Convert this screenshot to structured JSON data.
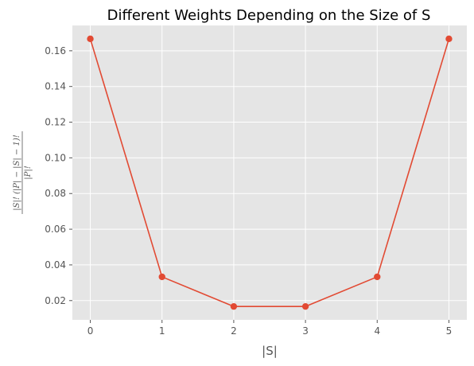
{
  "chart_data": {
    "type": "line",
    "title": "Different Weights Depending on the Size of S",
    "xlabel": "|S|",
    "ylabel_numerator": "|S|! (|P| − |S| − 1)!",
    "ylabel_denominator": "|P|!",
    "x": [
      0,
      1,
      2,
      3,
      4,
      5
    ],
    "series": [
      {
        "values": [
          0.1667,
          0.0333,
          0.0167,
          0.0167,
          0.0333,
          0.1667
        ]
      }
    ],
    "xlim": [
      -0.25,
      5.25
    ],
    "ylim": [
      0.0092,
      0.1742
    ],
    "xticks": [
      0,
      1,
      2,
      3,
      4,
      5
    ],
    "yticks": [
      0.02,
      0.04,
      0.06,
      0.08,
      0.1,
      0.12,
      0.14,
      0.16
    ],
    "ytick_labels": [
      "0.02",
      "0.04",
      "0.06",
      "0.08",
      "0.10",
      "0.12",
      "0.14",
      "0.16"
    ],
    "grid": true,
    "colors": {
      "plot_background": "#e5e5e5",
      "grid": "#ffffff",
      "series": "#e24a33",
      "tick_text": "#555555"
    }
  }
}
